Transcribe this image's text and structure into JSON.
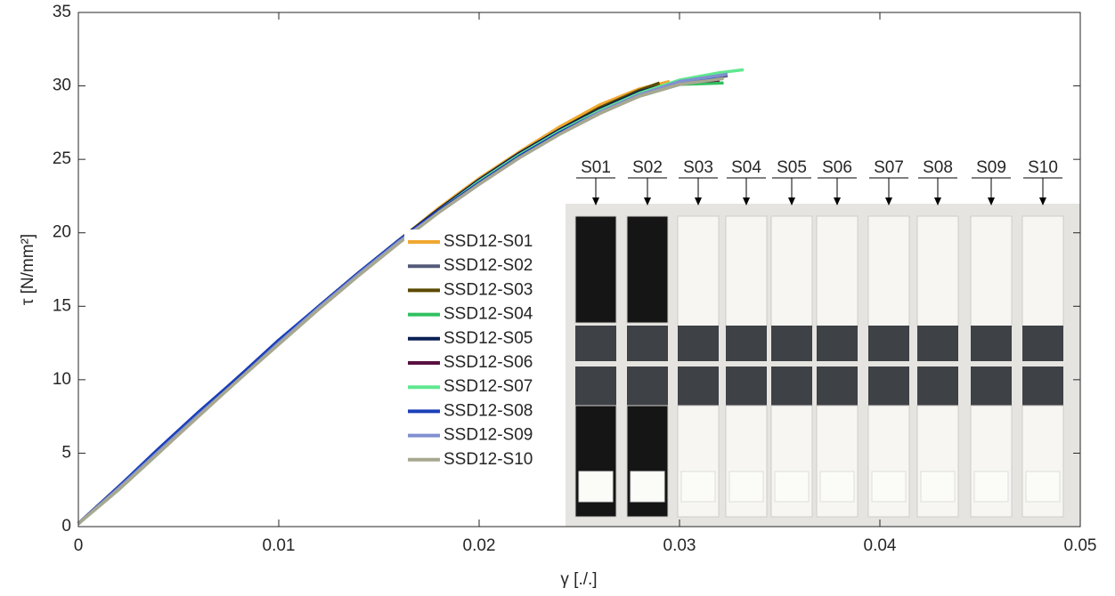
{
  "chart_data": {
    "type": "line",
    "xlabel": "γ [./.]",
    "ylabel": "τ [N/mm²]",
    "xlim": [
      0,
      0.05
    ],
    "xticks": [
      0,
      0.01,
      0.02,
      0.03,
      0.04,
      0.05
    ],
    "ylim": [
      0,
      35
    ],
    "yticks": [
      0,
      5,
      10,
      15,
      20,
      25,
      30,
      35
    ],
    "grid": false,
    "legend": "center",
    "annotations": [
      "S01",
      "S02",
      "S03",
      "S04",
      "S05",
      "S06",
      "S07",
      "S08",
      "S09",
      "S10"
    ],
    "series": [
      {
        "name": "SSD12-S01",
        "color": "#f0a830",
        "x": [
          0,
          0.002,
          0.004,
          0.006,
          0.008,
          0.01,
          0.012,
          0.014,
          0.016,
          0.018,
          0.02,
          0.022,
          0.024,
          0.026,
          0.028,
          0.0295
        ],
        "values": [
          0.2,
          2.7,
          5.2,
          7.7,
          10.2,
          12.6,
          15.0,
          17.3,
          19.5,
          21.7,
          23.7,
          25.5,
          27.2,
          28.7,
          29.8,
          30.3
        ]
      },
      {
        "name": "SSD12-S02",
        "color": "#555a78",
        "x": [
          0,
          0.002,
          0.004,
          0.006,
          0.008,
          0.01,
          0.012,
          0.014,
          0.016,
          0.018,
          0.02,
          0.022,
          0.024,
          0.026,
          0.028,
          0.03,
          0.0324
        ],
        "values": [
          0.2,
          2.6,
          5.1,
          7.6,
          10.1,
          12.5,
          14.9,
          17.2,
          19.4,
          21.5,
          23.4,
          25.2,
          26.8,
          28.2,
          29.3,
          30.1,
          30.7
        ]
      },
      {
        "name": "SSD12-S03",
        "color": "#5a4a00",
        "x": [
          0,
          0.002,
          0.004,
          0.006,
          0.008,
          0.01,
          0.012,
          0.014,
          0.016,
          0.018,
          0.02,
          0.022,
          0.024,
          0.026,
          0.028,
          0.029
        ],
        "values": [
          0.2,
          2.7,
          5.2,
          7.7,
          10.1,
          12.6,
          15.0,
          17.3,
          19.5,
          21.6,
          23.6,
          25.4,
          27.0,
          28.5,
          29.7,
          30.2
        ]
      },
      {
        "name": "SSD12-S04",
        "color": "#30c060",
        "x": [
          0,
          0.002,
          0.004,
          0.006,
          0.008,
          0.01,
          0.012,
          0.014,
          0.016,
          0.018,
          0.02,
          0.022,
          0.024,
          0.026,
          0.028,
          0.03,
          0.0322
        ],
        "values": [
          0.2,
          2.5,
          5.0,
          7.6,
          10.0,
          12.5,
          14.9,
          17.2,
          19.4,
          21.5,
          23.4,
          25.2,
          26.8,
          28.2,
          29.3,
          30.1,
          30.2
        ]
      },
      {
        "name": "SSD12-S05",
        "color": "#0a1f55",
        "x": [
          0,
          0.002,
          0.004,
          0.006,
          0.008,
          0.01,
          0.012,
          0.014,
          0.016,
          0.018,
          0.02,
          0.022,
          0.024,
          0.026,
          0.028,
          0.0297
        ],
        "values": [
          0.2,
          2.7,
          5.2,
          7.7,
          10.2,
          12.6,
          15.0,
          17.3,
          19.5,
          21.6,
          23.6,
          25.4,
          27.0,
          28.4,
          29.6,
          30.2
        ]
      },
      {
        "name": "SSD12-S06",
        "color": "#5a1040",
        "x": [
          0,
          0.002,
          0.004,
          0.006,
          0.008,
          0.01,
          0.012,
          0.014,
          0.016,
          0.018,
          0.02,
          0.022,
          0.024,
          0.026,
          0.028,
          0.03,
          0.032
        ],
        "values": [
          0.2,
          2.6,
          5.1,
          7.6,
          10.1,
          12.5,
          14.9,
          17.2,
          19.4,
          21.5,
          23.5,
          25.3,
          26.9,
          28.3,
          29.4,
          30.2,
          30.4
        ]
      },
      {
        "name": "SSD12-S07",
        "color": "#60e890",
        "x": [
          0,
          0.002,
          0.004,
          0.006,
          0.008,
          0.01,
          0.012,
          0.014,
          0.016,
          0.018,
          0.02,
          0.022,
          0.024,
          0.026,
          0.028,
          0.03,
          0.032,
          0.0332
        ],
        "values": [
          0.2,
          2.6,
          5.1,
          7.6,
          10.1,
          12.5,
          14.9,
          17.2,
          19.4,
          21.5,
          23.5,
          25.3,
          26.9,
          28.3,
          29.5,
          30.4,
          30.9,
          31.1
        ]
      },
      {
        "name": "SSD12-S08",
        "color": "#1a3fb8",
        "x": [
          0,
          0.002,
          0.004,
          0.006,
          0.008,
          0.01,
          0.012,
          0.014,
          0.016,
          0.018,
          0.02,
          0.022,
          0.024,
          0.026,
          0.028,
          0.03,
          0.0318
        ],
        "values": [
          0.2,
          2.7,
          5.3,
          7.8,
          10.2,
          12.7,
          15.0,
          17.3,
          19.5,
          21.5,
          23.4,
          25.2,
          26.8,
          28.2,
          29.4,
          30.2,
          30.6
        ]
      },
      {
        "name": "SSD12-S09",
        "color": "#8090d0",
        "x": [
          0,
          0.002,
          0.004,
          0.006,
          0.008,
          0.01,
          0.012,
          0.014,
          0.016,
          0.018,
          0.02,
          0.022,
          0.024,
          0.026,
          0.028,
          0.03,
          0.0324
        ],
        "values": [
          0.2,
          2.6,
          5.1,
          7.6,
          10.0,
          12.5,
          14.9,
          17.2,
          19.4,
          21.4,
          23.3,
          25.1,
          26.7,
          28.2,
          29.4,
          30.3,
          30.8
        ]
      },
      {
        "name": "SSD12-S10",
        "color": "#a8a890",
        "x": [
          0,
          0.002,
          0.004,
          0.006,
          0.008,
          0.01,
          0.012,
          0.014,
          0.016,
          0.018,
          0.02,
          0.022,
          0.024,
          0.026,
          0.028,
          0.03,
          0.0322
        ],
        "values": [
          0.2,
          2.5,
          5.0,
          7.5,
          10.0,
          12.4,
          14.8,
          17.1,
          19.3,
          21.4,
          23.3,
          25.1,
          26.7,
          28.1,
          29.3,
          30.1,
          30.5
        ]
      }
    ]
  }
}
